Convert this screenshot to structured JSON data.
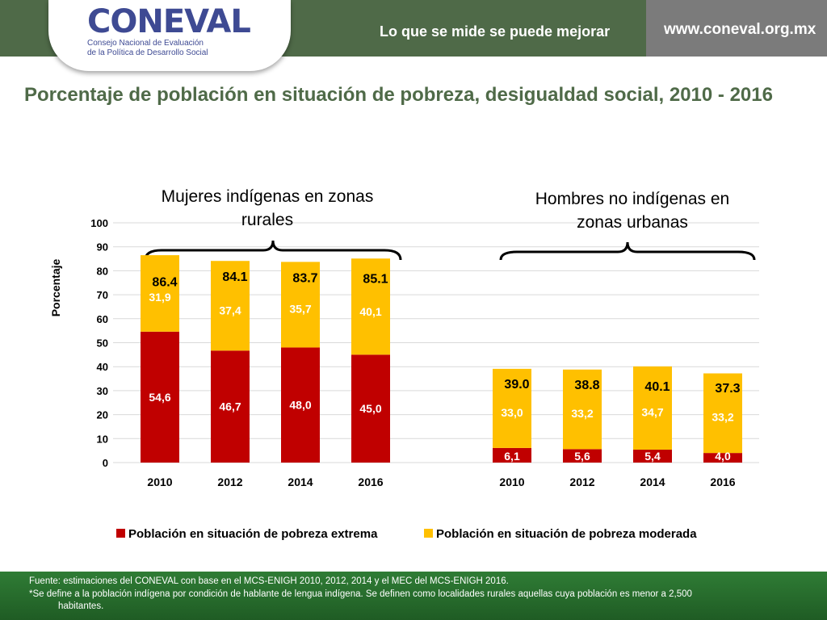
{
  "header": {
    "logo_text_main": "CONEVAL",
    "logo_line1": "Consejo Nacional de Evaluación",
    "logo_line2": "de la Política de Desarrollo Social",
    "tagline": "Lo que se mide se puede mejorar",
    "website": "www.coneval.org.mx"
  },
  "title": "Porcentaje de población en situación de pobreza, desigualdad social, 2010 - 2016",
  "chart_data": {
    "type": "bar",
    "stacked": true,
    "ylabel": "Porcentaje",
    "ylim": [
      0,
      100
    ],
    "yticks": [
      "0",
      "10",
      "20",
      "30",
      "40",
      "50",
      "60",
      "70",
      "80",
      "90",
      "100"
    ],
    "grid": true,
    "legend_position": "bottom",
    "colors": {
      "extrema": "#c00000",
      "moderada": "#ffc000"
    },
    "groups": [
      {
        "label": "Mujeres indígenas en zonas rurales",
        "categories": [
          "2010",
          "2012",
          "2014",
          "2016"
        ],
        "extrema": [
          54.6,
          46.7,
          48.0,
          45.0
        ],
        "moderada": [
          31.9,
          37.4,
          35.7,
          40.1
        ],
        "extrema_labels": [
          "54,6",
          "46,7",
          "48,0",
          "45,0"
        ],
        "moderada_labels": [
          "31,9",
          "37,4",
          "35,7",
          "40,1"
        ],
        "totals": [
          "86.4",
          "84.1",
          "83.7",
          "85.1"
        ]
      },
      {
        "label": "Hombres no indígenas en zonas urbanas",
        "categories": [
          "2010",
          "2012",
          "2014",
          "2016"
        ],
        "extrema": [
          6.1,
          5.6,
          5.4,
          4.0
        ],
        "moderada": [
          33.0,
          33.2,
          34.7,
          33.2
        ],
        "extrema_labels": [
          "6,1",
          "5,6",
          "5,4",
          "4,0"
        ],
        "moderada_labels": [
          "33,0",
          "33,2",
          "34,7",
          "33,2"
        ],
        "totals": [
          "39.0",
          "38.8",
          "40.1",
          "37.3"
        ]
      }
    ],
    "series": [
      {
        "name": "Población en situación de pobreza extrema"
      },
      {
        "name": "Población en situación de pobreza moderada"
      }
    ]
  },
  "footer": {
    "source": "Fuente: estimaciones del CONEVAL con base en el MCS-ENIGH 2010, 2012, 2014 y el MEC del MCS-ENIGH 2016.",
    "note_line1": "*Se define a la población indígena por condición de hablante de lengua indígena. Se definen como localidades rurales aquellas cuya población es menor a 2,500",
    "note_line2": "habitantes."
  }
}
